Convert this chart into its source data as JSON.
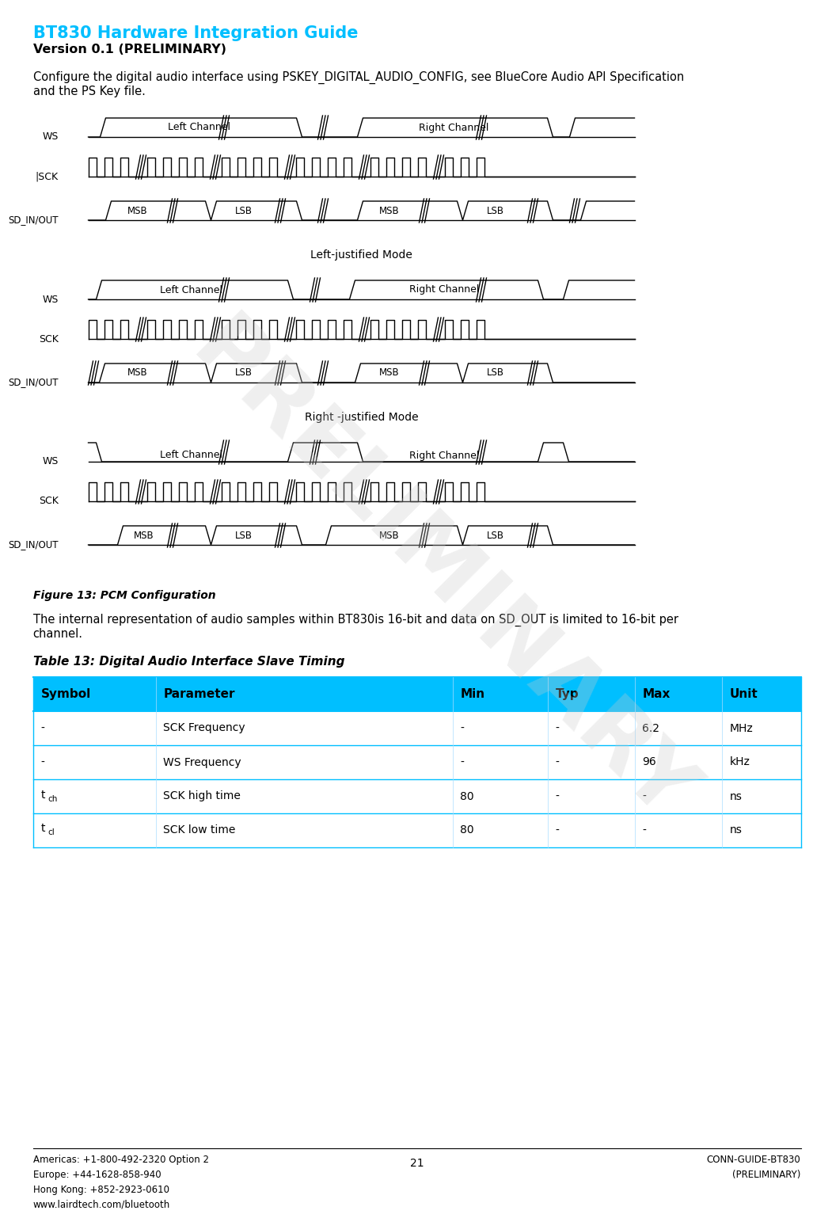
{
  "title": "BT830 Hardware Integration Guide",
  "subtitle": "Version 0.1 (PRELIMINARY)",
  "body_text1": "Configure the digital audio interface using PSKEY_DIGITAL_AUDIO_CONFIG, see BlueCore Audio API Specification",
  "body_text2": "and the PS Key file.",
  "figure_caption": "Figure 13: PCM Configuration",
  "body_text3": "The internal representation of audio samples within BT830is 16-bit and data on SD_OUT is limited to 16-bit per",
  "body_text4": "channel.",
  "table_title": "Table 13: Digital Audio Interface Slave Timing",
  "table_header": [
    "Symbol",
    "Parameter",
    "Min",
    "Typ",
    "Max",
    "Unit"
  ],
  "table_rows": [
    [
      "-",
      "SCK Frequency",
      "-",
      "-",
      "6.2",
      "MHz"
    ],
    [
      "-",
      "WS Frequency",
      "-",
      "-",
      "96",
      "kHz"
    ],
    [
      "t_ch",
      "SCK high time",
      "80",
      "-",
      "-",
      "ns"
    ],
    [
      "t_cl",
      "SCK low time",
      "80",
      "-",
      "-",
      "ns"
    ]
  ],
  "table_symbol_special": [
    "t_ch",
    "t_cl"
  ],
  "header_color": "#00BFFF",
  "title_color": "#00BFFF",
  "footer_left": "Americas: +1-800-492-2320 Option 2\nEurope: +44-1628-858-940\nHong Kong: +852-2923-0610\nwww.lairdtech.com/bluetooth",
  "footer_center": "21",
  "footer_right": "CONN-GUIDE-BT830\n(PRELIMINARY)",
  "watermark_text": "PRELIMINARY",
  "bg_color": "#ffffff",
  "line_color": "#000000"
}
